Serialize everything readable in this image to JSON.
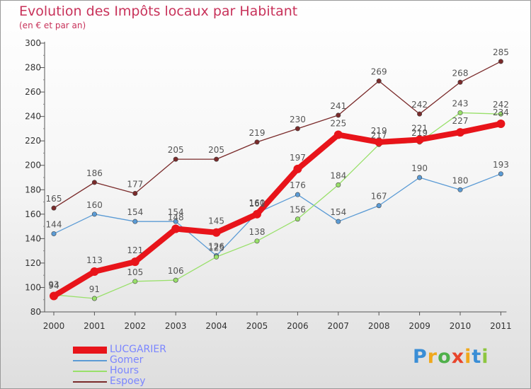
{
  "title": "Evolution des Impôts locaux par Habitant",
  "subtitle": "(en € et par an)",
  "logo": {
    "text": "Proxiti",
    "letter_colors": [
      "#3a8ed6",
      "#f0a81c",
      "#4fb04a",
      "#e8452c",
      "#f0a81c",
      "#3a8ed6",
      "#8dc63f"
    ]
  },
  "chart_data": {
    "type": "line",
    "title": "Evolution des Impôts locaux par Habitant",
    "subtitle": "(en € et par an)",
    "xlabel": "",
    "ylabel": "",
    "ylim": [
      80,
      300
    ],
    "y_ticks": [
      80,
      100,
      120,
      140,
      160,
      180,
      200,
      220,
      240,
      260,
      280,
      300
    ],
    "x_labels": [
      "2000",
      "2001",
      "2002",
      "2003",
      "2004",
      "2005",
      "2006",
      "2007",
      "2008",
      "2009",
      "2010",
      "2011"
    ],
    "grid": false,
    "legend_position": "bottom-left",
    "series": [
      {
        "name": "LUCGARIER",
        "color": "#e8141a",
        "role": "main",
        "values": [
          93,
          113,
          121,
          148,
          145,
          160,
          197,
          225,
          219,
          221,
          227,
          234
        ]
      },
      {
        "name": "Gomer",
        "color": "#5b9bd5",
        "role": "thin",
        "values": [
          144,
          160,
          154,
          154,
          126,
          161,
          176,
          154,
          167,
          190,
          180,
          193
        ]
      },
      {
        "name": "Hours",
        "color": "#99e06a",
        "role": "thin",
        "values": [
          94,
          91,
          105,
          106,
          125,
          138,
          156,
          184,
          217,
          219,
          243,
          242
        ]
      },
      {
        "name": "Espoey",
        "color": "#7a2a2a",
        "role": "thin",
        "values": [
          165,
          186,
          177,
          205,
          205,
          219,
          230,
          241,
          269,
          242,
          268,
          285
        ]
      }
    ]
  }
}
